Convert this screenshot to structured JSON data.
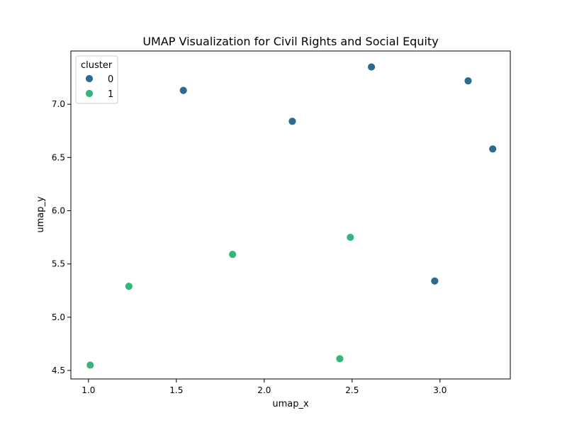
{
  "chart_data": {
    "type": "scatter",
    "title": "UMAP Visualization for Civil Rights and Social Equity",
    "xlabel": "umap_x",
    "ylabel": "umap_y",
    "xlim": [
      0.9,
      3.4
    ],
    "ylim": [
      4.42,
      7.5
    ],
    "xticks": [
      1.0,
      1.5,
      2.0,
      2.5,
      3.0
    ],
    "xtick_labels": [
      "1.0",
      "1.5",
      "2.0",
      "2.5",
      "3.0"
    ],
    "yticks": [
      4.5,
      5.0,
      5.5,
      6.0,
      6.5,
      7.0
    ],
    "ytick_labels": [
      "4.5",
      "5.0",
      "5.5",
      "6.0",
      "6.5",
      "7.0"
    ],
    "grid": false,
    "legend": {
      "title": "cluster",
      "placement": "top-left",
      "entries": [
        {
          "label": "0",
          "color": "#2c6a8f"
        },
        {
          "label": "1",
          "color": "#33b679"
        }
      ]
    },
    "series": [
      {
        "name": "0",
        "color": "#2c6a8f",
        "points": [
          {
            "x": 1.54,
            "y": 7.13
          },
          {
            "x": 2.16,
            "y": 6.84
          },
          {
            "x": 2.61,
            "y": 7.35
          },
          {
            "x": 3.16,
            "y": 7.22
          },
          {
            "x": 3.3,
            "y": 6.58
          },
          {
            "x": 2.97,
            "y": 5.34
          }
        ]
      },
      {
        "name": "1",
        "color": "#33b679",
        "points": [
          {
            "x": 1.01,
            "y": 4.55
          },
          {
            "x": 1.23,
            "y": 5.29
          },
          {
            "x": 1.82,
            "y": 5.59
          },
          {
            "x": 2.49,
            "y": 5.75
          },
          {
            "x": 2.43,
            "y": 4.61
          }
        ]
      }
    ]
  }
}
